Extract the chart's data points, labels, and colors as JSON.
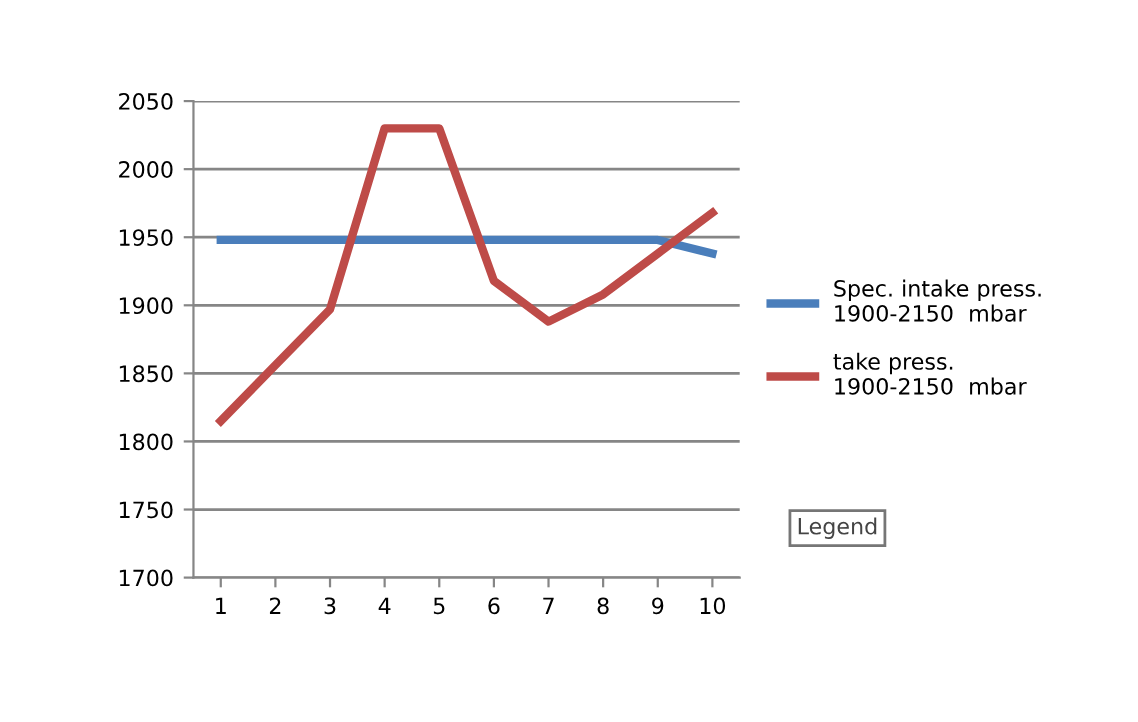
{
  "chart_data": {
    "type": "line",
    "categories": [
      "1",
      "2",
      "3",
      "4",
      "5",
      "6",
      "7",
      "8",
      "9",
      "10"
    ],
    "series": [
      {
        "name": "Spec. intake press.\n1900-2150  mbar",
        "color": "#4a7ebb",
        "values": [
          1948,
          1948,
          1948,
          1948,
          1948,
          1948,
          1948,
          1948,
          1948,
          1938
        ]
      },
      {
        "name": "take press.\n1900-2150  mbar",
        "color": "#be4b48",
        "values": [
          1815,
          1856,
          1897,
          2030,
          2030,
          1918,
          1888,
          1908,
          1938,
          1968
        ]
      }
    ],
    "ylim": [
      1700,
      2050
    ],
    "yticks": [
      1700,
      1750,
      1800,
      1850,
      1900,
      1950,
      2000,
      2050
    ],
    "grid": "y",
    "legend": "right",
    "marker": "none",
    "line_style": "solid",
    "annotations": [
      "Legend"
    ]
  }
}
